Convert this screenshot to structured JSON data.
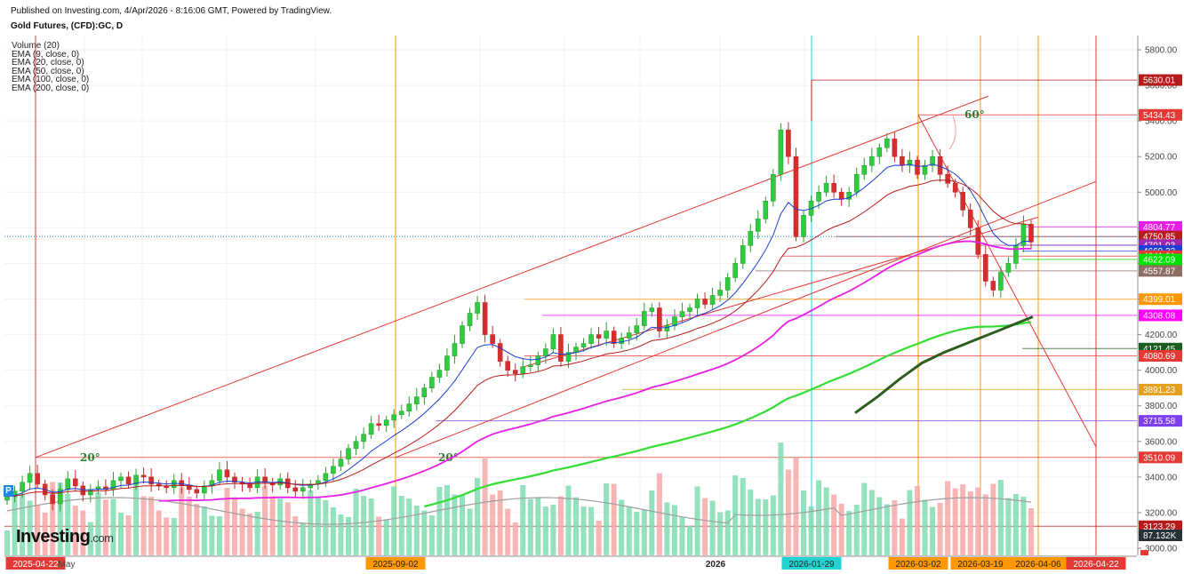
{
  "header": {
    "published": "Published on Investing.com, 4/Apr/2026 - 8:16:06 GMT, Powered by TradingView.",
    "title": "Gold Futures, (CFD):GC, D"
  },
  "indicators": [
    "Volume (20)",
    "EMA (9, close, 0)",
    "EMA (20, close, 0)",
    "EMA (50, close, 0)",
    "EMA (100, close, 0)",
    "EMA (200, close, 0)"
  ],
  "logo": {
    "main": "Investing",
    "suffix": ".com"
  },
  "chart_data": {
    "type": "candlestick",
    "title": "Gold Futures, (CFD):GC, D",
    "y_axis": {
      "range": [
        2960,
        5880
      ],
      "ticks": [
        3000,
        3200,
        3400,
        3600,
        3800,
        4000,
        4200,
        4400,
        4600,
        4800,
        5000,
        5200,
        5400,
        5600,
        5800
      ],
      "tick_labels": [
        "3000.00",
        "3200.00",
        "3400.00",
        "3600.00",
        "3800.00",
        "4000.00",
        "4200.00",
        "4400.00",
        "4600.00",
        "4800.00",
        "5000.00",
        "5200.00",
        "5400.00",
        "5600.00",
        "5800.00"
      ]
    },
    "x_axis": {
      "labels": [
        {
          "text": "2025-04-22",
          "style": "red"
        },
        {
          "text": "May",
          "style": "plain"
        },
        {
          "text": "2025-09-02",
          "style": "orange"
        },
        {
          "text": "2026",
          "style": "bold"
        },
        {
          "text": "2026-01-29",
          "style": "cyan"
        },
        {
          "text": "2026-03-02",
          "style": "orange"
        },
        {
          "text": "2026-03-19",
          "style": "orange"
        },
        {
          "text": "2026-04-06",
          "style": "orange"
        },
        {
          "text": "2026-04-22",
          "style": "red"
        }
      ]
    },
    "price_levels": [
      {
        "value": 5630.01,
        "label": "5630.01",
        "color": "#b71c1c"
      },
      {
        "value": 5434.43,
        "label": "5434.43",
        "color": "#e53935"
      },
      {
        "value": 4804.77,
        "label": "4804.77",
        "color": "#e91ee6"
      },
      {
        "value": 4750.85,
        "label": "4750.85",
        "color": "#b71c1c"
      },
      {
        "value": 4702.7,
        "label": "4702.70",
        "color": "#5c7ee6"
      },
      {
        "value": 4701.93,
        "label": "4701.93",
        "color": "#9c27b0"
      },
      {
        "value": 4669.22,
        "label": "4669.22",
        "color": "#1a3fd6"
      },
      {
        "value": 4641.01,
        "label": "4641.01",
        "color": "#e53935"
      },
      {
        "value": 4622.09,
        "label": "4622.09",
        "color": "#00e000"
      },
      {
        "value": 4557.87,
        "label": "4557.87",
        "color": "#8d6e63"
      },
      {
        "value": 4399.01,
        "label": "4399.01",
        "color": "#ff9800"
      },
      {
        "value": 4308.08,
        "label": "4308.08",
        "color": "#ff00ff"
      },
      {
        "value": 4121.45,
        "label": "4121.45",
        "color": "#1b5e20"
      },
      {
        "value": 4080.69,
        "label": "4080.69",
        "color": "#e53935"
      },
      {
        "value": 3891.23,
        "label": "3891.23",
        "color": "#e6a020"
      },
      {
        "value": 3715.58,
        "label": "3715.58",
        "color": "#7e3ff2"
      },
      {
        "value": 3510.09,
        "label": "3510.09",
        "color": "#e53935"
      },
      {
        "value": 3123.29,
        "label": "3123.29",
        "color": "#b71c1c"
      }
    ],
    "volume_label": "87.132K",
    "annotations": [
      "20°",
      "20°",
      "60°"
    ],
    "close_series": [
      3290,
      3320,
      3370,
      3420,
      3360,
      3300,
      3250,
      3330,
      3390,
      3350,
      3300,
      3330,
      3345,
      3330,
      3380,
      3400,
      3360,
      3410,
      3400,
      3360,
      3350,
      3340,
      3380,
      3350,
      3330,
      3310,
      3350,
      3380,
      3440,
      3400,
      3370,
      3360,
      3340,
      3400,
      3370,
      3355,
      3390,
      3340,
      3320,
      3340,
      3360,
      3380,
      3420,
      3460,
      3500,
      3560,
      3600,
      3640,
      3700,
      3690,
      3720,
      3750,
      3770,
      3810,
      3850,
      3900,
      3960,
      4000,
      4080,
      4150,
      4250,
      4320,
      4380,
      4200,
      4150,
      4050,
      4000,
      3980,
      4020,
      4030,
      4080,
      4120,
      4200,
      4050,
      4100,
      4130,
      4150,
      4200,
      4180,
      4220,
      4150,
      4180,
      4210,
      4250,
      4330,
      4350,
      4220,
      4250,
      4300,
      4330,
      4350,
      4400,
      4370,
      4420,
      4450,
      4520,
      4600,
      4700,
      4780,
      4850,
      4950,
      5100,
      5350,
      5200,
      4750,
      4870,
      4950,
      5000,
      5050,
      5000,
      4960,
      5000,
      5100,
      5150,
      5200,
      5250,
      5300,
      5200,
      5150,
      5180,
      5100,
      5150,
      5200,
      5100,
      5050,
      5000,
      4900,
      4800,
      4650,
      4500,
      4450,
      4550,
      4600,
      4700,
      4820,
      4720
    ],
    "ema_series": [
      {
        "name": "EMA (9, close, 0)",
        "color": "#1a3fd6"
      },
      {
        "name": "EMA (20, close, 0)",
        "color": "#b71c1c"
      },
      {
        "name": "EMA (50, close, 0)",
        "color": "#e91ee6"
      },
      {
        "name": "EMA (100, close, 0)",
        "color": "#33dd33"
      },
      {
        "name": "EMA (200, close, 0)",
        "color": "#2e5e1e"
      }
    ]
  }
}
